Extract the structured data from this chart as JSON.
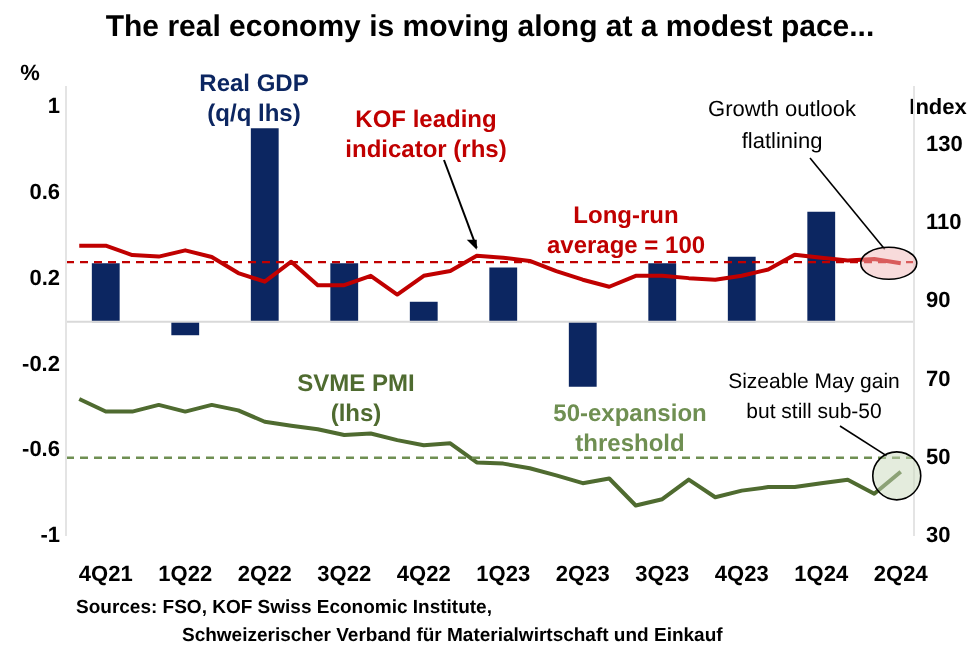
{
  "chart_data": {
    "type": "bar",
    "title": "The real economy is moving along at a modest pace...",
    "ylabel": "%",
    "y2label": "Index",
    "categories": [
      null,
      "4Q21",
      null,
      null,
      "1Q22",
      null,
      null,
      "2Q22",
      null,
      null,
      "3Q22",
      null,
      null,
      "4Q22",
      null,
      null,
      "1Q23",
      null,
      null,
      "2Q23",
      null,
      null,
      "3Q23",
      null,
      null,
      "4Q23",
      null,
      null,
      "1Q24",
      null,
      null,
      "2Q24"
    ],
    "series": [
      {
        "name": "Real GDP (q/q lhs)",
        "color": "#0c2661",
        "values": [
          null,
          0.27,
          null,
          null,
          -0.06,
          null,
          null,
          0.9,
          null,
          null,
          0.27,
          null,
          null,
          0.09,
          null,
          null,
          0.25,
          null,
          null,
          -0.3,
          null,
          null,
          0.27,
          null,
          null,
          0.3,
          null,
          null,
          0.51,
          null,
          null,
          null
        ]
      },
      {
        "type": "line",
        "name": "KOF leading indicator (rhs)",
        "axis": "y2",
        "color": "#c00000",
        "values": [
          104.2,
          104.2,
          101.8,
          101.4,
          103,
          101.3,
          97.2,
          95,
          100.1,
          94.1,
          94.1,
          96.5,
          91.7,
          96.5,
          97.7,
          101.6,
          101.1,
          100.3,
          97.7,
          95.5,
          93.7,
          96.5,
          96.5,
          95.9,
          95.5,
          96.5,
          98.1,
          101.9,
          101.1,
          100.4,
          100.8,
          99.7
        ]
      },
      {
        "type": "line",
        "name": "SVME PMI (lhs)",
        "axis": "y2",
        "color": "#4f6b30",
        "values": [
          65,
          61.8,
          61.8,
          63.5,
          61.8,
          63.5,
          62.1,
          59.2,
          58.2,
          57.3,
          55.8,
          56.2,
          54.5,
          53.2,
          53.7,
          48.8,
          48.5,
          47.3,
          45.5,
          43.5,
          44.7,
          37.8,
          39.4,
          44.4,
          39.9,
          41.6,
          42.5,
          42.5,
          43.5,
          44.4,
          40.8,
          46.4
        ]
      }
    ],
    "ylim": [
      -1,
      1.1
    ],
    "yticks": [
      -1,
      -0.6,
      -0.2,
      0.2,
      0.6,
      1
    ],
    "y2lim": [
      30,
      145
    ],
    "y2ticks": [
      30,
      50,
      70,
      90,
      110,
      130
    ],
    "ref_lines": [
      {
        "axis": "y2",
        "value": 100,
        "label": "Long-run average = 100",
        "color": "#c00000",
        "line_style": "dashed"
      },
      {
        "axis": "y2",
        "value": 50,
        "label": "50-expansion threshold",
        "color": "#6f8f52",
        "line_style": "dashed"
      }
    ],
    "annotations": [
      "Growth outlook flatlining",
      "Sizeable May gain but still sub-50",
      "Sources: FSO, KOF Swiss Economic Institute, Schweizerischer Verband für Materialwirtschaft und Einkauf"
    ],
    "legend": false,
    "grid": false,
    "marker": "none",
    "line_style": "solid"
  }
}
